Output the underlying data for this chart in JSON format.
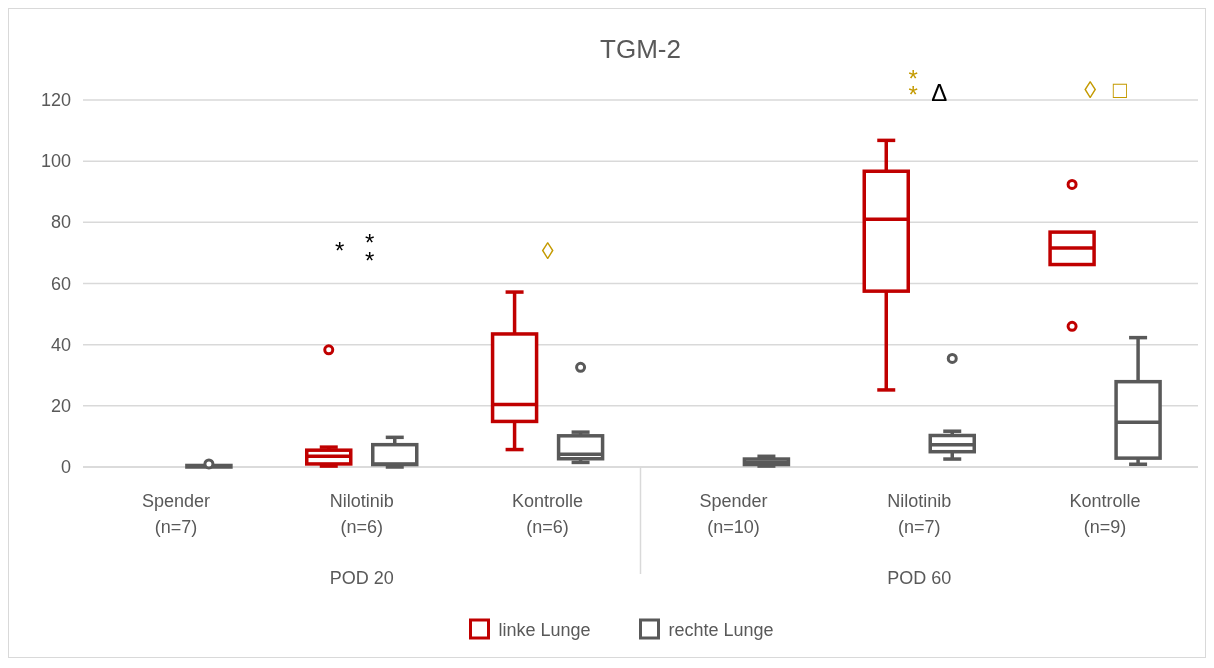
{
  "chart_data": {
    "type": "box",
    "title": "TGM-2",
    "categories": [
      "Spender\n(n=7)",
      "Nilotinib\n(n=6)",
      "Kontrolle\n(n=6)",
      "Spender\n(n=10)",
      "Nilotinib\n(n=7)",
      "Kontrolle\n(n=9)"
    ],
    "series": [
      {
        "name": "linke Lunge",
        "color": "#c00000",
        "boxes": [
          null,
          {
            "low": 0.3,
            "q1": 1,
            "median": 3.5,
            "q3": 5.5,
            "high": 6.5,
            "outliers": [
              38.3
            ]
          },
          {
            "low": 5.7,
            "q1": 14.9,
            "median": 20.4,
            "q3": 43.5,
            "high": 57.2
          },
          null,
          {
            "low": 25.2,
            "q1": 57.5,
            "median": 81,
            "q3": 96.7,
            "high": 106.8
          },
          {
            "low": 66.2,
            "q1": 66.2,
            "median": 71.6,
            "q3": 76.8,
            "high": 76.8,
            "outliers": [
              92.4,
              46
            ]
          }
        ]
      },
      {
        "name": "rechte Lunge",
        "color": "#595959",
        "boxes": [
          {
            "low": 0,
            "q1": 0,
            "median": 0.3,
            "q3": 0.5,
            "high": 0.5,
            "outliers": [
              1
            ]
          },
          {
            "low": 0,
            "q1": 0.8,
            "median": 1,
            "q3": 7.3,
            "high": 9.7
          },
          {
            "low": 1.5,
            "q1": 2.7,
            "median": 4.2,
            "q3": 10.2,
            "high": 11.4,
            "outliers": [
              32.6
            ]
          },
          {
            "low": 0.3,
            "q1": 0.8,
            "median": 1.5,
            "q3": 2.6,
            "high": 3.5
          },
          {
            "low": 2.6,
            "q1": 5,
            "median": 7.3,
            "q3": 10.3,
            "high": 11.7,
            "outliers": [
              35.5
            ]
          },
          {
            "low": 0.9,
            "q1": 2.9,
            "median": 14.6,
            "q3": 27.9,
            "high": 42.3
          }
        ]
      }
    ],
    "ylim": [
      0,
      120
    ],
    "yticks": [
      0,
      20,
      40,
      60,
      80,
      100,
      120
    ],
    "grid": "y",
    "legend": "bottom",
    "annotations": [
      "POD 20",
      "POD 60",
      "*",
      "*",
      "*",
      "◊",
      "*",
      "*",
      "Δ",
      "◊",
      "□"
    ]
  }
}
